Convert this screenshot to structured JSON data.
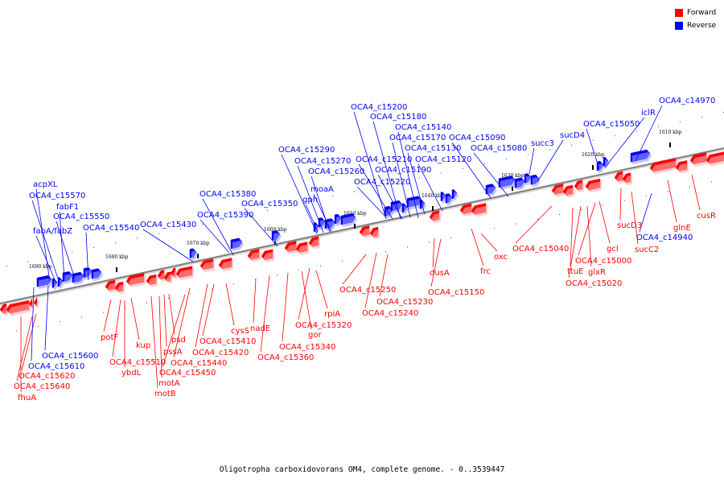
{
  "colors": {
    "forward": "#ff0000",
    "reverse": "#0000ff",
    "axis": "#808080"
  },
  "legend": [
    {
      "label": "Forward",
      "color": "#ff0000"
    },
    {
      "label": "Reverse",
      "color": "#0000ff"
    }
  ],
  "caption": "Oligotropha carboxidovorans OM4, complete genome. - 0..3539447",
  "chart_data": {
    "type": "genome-map",
    "ticks": [
      "1690 kbp",
      "1680 kbp",
      "1670 kbp",
      "1660 kbp",
      "1650 kbp",
      "1640 kbp",
      "1630 kbp",
      "1620 kbp",
      "1610 kbp"
    ],
    "forward_labels": [
      "fhuA",
      "OCA4_c15640",
      "OCA4_c15620",
      "potF",
      "OCA4_c15510",
      "ybdL",
      "kup",
      "motB",
      "motA",
      "pssA",
      "psd",
      "OCA4_c15450",
      "OCA4_c15440",
      "OCA4_c15420",
      "OCA4_c15410",
      "cysS",
      "nadE",
      "OCA4_c15360",
      "OCA4_c15340",
      "gor",
      "OCA4_c15320",
      "rpiA",
      "OCA4_c15250",
      "OCA4_c15240",
      "OCA4_c15230",
      "dusA",
      "OCA4_c15150",
      "frc",
      "oxc",
      "OCA4_c15040",
      "ttuE",
      "OCA4_c15020",
      "glxR",
      "OCA4_c15000",
      "gcl",
      "sucD3",
      "sucC2",
      "glnE",
      "cusR"
    ],
    "reverse_labels": [
      "OCA4_c15610",
      "OCA4_c15600",
      "acpXL",
      "OCA4_c15570",
      "fabF1",
      "OCA4_c15550",
      "fabA/fabZ",
      "OCA4_c15540",
      "OCA4_c15430",
      "OCA4_c15380",
      "OCA4_c15390",
      "OCA4_c15350",
      "OCA4_c15290",
      "OCA4_c15270",
      "OCA4_c15260",
      "gph",
      "moaA",
      "OCA4_c15200",
      "OCA4_c15180",
      "OCA4_c15140",
      "OCA4_c15170",
      "OCA4_c15130",
      "OCA4_c15210",
      "OCA4_c15190",
      "OCA4_c15220",
      "OCA4_c15120",
      "OCA4_c15090",
      "OCA4_c15080",
      "succ3",
      "sucD4",
      "OCA4_c15050",
      "iclR",
      "OCA4_c14970",
      "OCA4_c14940"
    ]
  }
}
